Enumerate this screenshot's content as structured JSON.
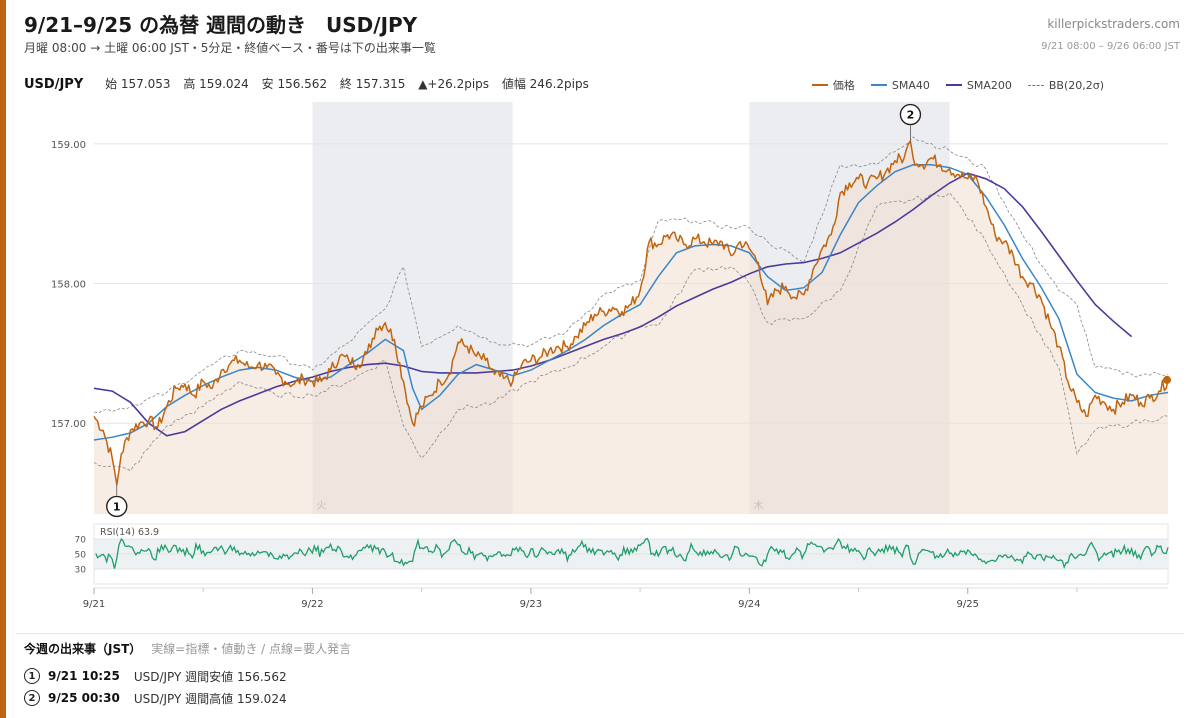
{
  "header": {
    "title": "9/21–9/25 の為替 週間の動き　USD/JPY",
    "subtitle": "月曜 08:00 → 土曜 06:00 JST・5分足・終値ベース・番号は下の出来事一覧",
    "site": "killerpickstraders.com",
    "range": "9/21 08:00 – 9/26 06:00 JST"
  },
  "stats": {
    "pair": "USD/JPY",
    "open": "始 157.053",
    "high": "高 159.024",
    "low": "安 156.562",
    "close": "終 157.315",
    "change": "▲+26.2pips",
    "range": "値幅 246.2pips"
  },
  "legend": [
    {
      "label": "価格",
      "color": "#c0650f"
    },
    {
      "label": "SMA40",
      "color": "#3a86c8"
    },
    {
      "label": "SMA200",
      "color": "#4b3a9a"
    },
    {
      "label": "BB(20,2σ)",
      "color": "#777777"
    }
  ],
  "colors": {
    "price": "#c0650f",
    "sma40": "#3a86c8",
    "sma200": "#4b3a9a",
    "bb": "#888888",
    "rsi": "#1f9e6b",
    "area": "#f3dfcf",
    "shade": "#ecedf0"
  },
  "chart_data": {
    "type": "line",
    "ylim": [
      156.35,
      159.3
    ],
    "y_ticks": [
      157.0,
      158.0,
      159.0
    ],
    "y_tick_labels": [
      "157.00",
      "158.00",
      "159.00"
    ],
    "xlim": [
      0,
      118
    ],
    "x_ticks": [
      0,
      24,
      48,
      72,
      96
    ],
    "x_tick_labels": [
      "9/21",
      "9/22",
      "9/23",
      "9/24",
      "9/25"
    ],
    "x_minor_ticks": [
      12,
      36,
      60,
      84,
      108
    ],
    "shaded_days": [
      {
        "from": 24,
        "to": 46,
        "label": "火"
      },
      {
        "from": 72,
        "to": 94,
        "label": "木"
      }
    ],
    "price": [
      [
        0,
        157.05
      ],
      [
        1,
        156.95
      ],
      [
        2,
        156.75
      ],
      [
        2.5,
        156.56
      ],
      [
        3,
        156.78
      ],
      [
        4,
        156.95
      ],
      [
        5,
        157.0
      ],
      [
        6,
        157.02
      ],
      [
        7,
        156.97
      ],
      [
        8,
        157.12
      ],
      [
        9,
        157.25
      ],
      [
        10,
        157.28
      ],
      [
        11,
        157.2
      ],
      [
        12,
        157.3
      ],
      [
        13,
        157.25
      ],
      [
        14,
        157.38
      ],
      [
        15,
        157.43
      ],
      [
        16,
        157.45
      ],
      [
        17,
        157.4
      ],
      [
        18,
        157.42
      ],
      [
        19,
        157.4
      ],
      [
        20,
        157.35
      ],
      [
        21,
        157.3
      ],
      [
        22,
        157.28
      ],
      [
        23,
        157.32
      ],
      [
        24,
        157.3
      ],
      [
        25,
        157.3
      ],
      [
        26,
        157.38
      ],
      [
        27,
        157.48
      ],
      [
        28,
        157.45
      ],
      [
        29,
        157.42
      ],
      [
        30,
        157.5
      ],
      [
        31,
        157.68
      ],
      [
        32,
        157.72
      ],
      [
        33,
        157.6
      ],
      [
        34,
        157.3
      ],
      [
        35,
        157.0
      ],
      [
        36,
        157.12
      ],
      [
        37,
        157.2
      ],
      [
        38,
        157.3
      ],
      [
        39,
        157.35
      ],
      [
        40,
        157.58
      ],
      [
        41,
        157.55
      ],
      [
        42,
        157.48
      ],
      [
        43,
        157.45
      ],
      [
        44,
        157.35
      ],
      [
        45,
        157.32
      ],
      [
        46,
        157.3
      ],
      [
        47,
        157.42
      ],
      [
        48,
        157.45
      ],
      [
        49,
        157.47
      ],
      [
        50,
        157.52
      ],
      [
        51,
        157.55
      ],
      [
        52,
        157.55
      ],
      [
        53,
        157.62
      ],
      [
        54,
        157.7
      ],
      [
        55,
        157.78
      ],
      [
        56,
        157.8
      ],
      [
        57,
        157.83
      ],
      [
        58,
        157.8
      ],
      [
        59,
        157.85
      ],
      [
        60,
        157.95
      ],
      [
        61,
        158.3
      ],
      [
        62,
        158.28
      ],
      [
        63,
        158.35
      ],
      [
        64,
        158.32
      ],
      [
        65,
        158.28
      ],
      [
        66,
        158.32
      ],
      [
        67,
        158.3
      ],
      [
        68,
        158.28
      ],
      [
        69,
        158.3
      ],
      [
        70,
        158.2
      ],
      [
        71,
        158.3
      ],
      [
        72,
        158.25
      ],
      [
        73,
        158.15
      ],
      [
        74,
        157.85
      ],
      [
        75,
        157.95
      ],
      [
        76,
        157.98
      ],
      [
        77,
        157.9
      ],
      [
        78,
        157.92
      ],
      [
        79,
        158.1
      ],
      [
        80,
        158.25
      ],
      [
        81,
        158.35
      ],
      [
        82,
        158.65
      ],
      [
        83,
        158.72
      ],
      [
        84,
        158.75
      ],
      [
        85,
        158.72
      ],
      [
        86,
        158.75
      ],
      [
        87,
        158.8
      ],
      [
        88,
        158.88
      ],
      [
        89,
        158.9
      ],
      [
        89.7,
        159.02
      ],
      [
        90,
        158.9
      ],
      [
        91,
        158.85
      ],
      [
        92,
        158.9
      ],
      [
        93,
        158.85
      ],
      [
        94,
        158.82
      ],
      [
        95,
        158.78
      ],
      [
        96,
        158.75
      ],
      [
        97,
        158.75
      ],
      [
        98,
        158.55
      ],
      [
        99,
        158.35
      ],
      [
        100,
        158.3
      ],
      [
        101,
        158.2
      ],
      [
        102,
        158.05
      ],
      [
        103,
        158.0
      ],
      [
        104,
        157.9
      ],
      [
        105,
        157.72
      ],
      [
        106,
        157.55
      ],
      [
        107,
        157.3
      ],
      [
        108,
        157.15
      ],
      [
        109,
        157.05
      ],
      [
        110,
        157.2
      ],
      [
        111,
        157.15
      ],
      [
        112,
        157.1
      ],
      [
        113,
        157.15
      ],
      [
        114,
        157.2
      ],
      [
        115,
        157.15
      ],
      [
        116,
        157.18
      ],
      [
        117,
        157.23
      ],
      [
        118,
        157.31
      ]
    ],
    "sma40": [
      [
        0,
        156.88
      ],
      [
        2,
        156.9
      ],
      [
        4,
        156.93
      ],
      [
        6,
        157.0
      ],
      [
        8,
        157.12
      ],
      [
        10,
        157.2
      ],
      [
        12,
        157.27
      ],
      [
        14,
        157.33
      ],
      [
        16,
        157.38
      ],
      [
        18,
        157.4
      ],
      [
        20,
        157.38
      ],
      [
        22,
        157.33
      ],
      [
        24,
        157.3
      ],
      [
        26,
        157.33
      ],
      [
        28,
        157.42
      ],
      [
        30,
        157.5
      ],
      [
        32,
        157.6
      ],
      [
        34,
        157.52
      ],
      [
        35,
        157.25
      ],
      [
        36,
        157.1
      ],
      [
        38,
        157.2
      ],
      [
        40,
        157.35
      ],
      [
        42,
        157.42
      ],
      [
        44,
        157.38
      ],
      [
        46,
        157.34
      ],
      [
        48,
        157.38
      ],
      [
        50,
        157.45
      ],
      [
        52,
        157.52
      ],
      [
        54,
        157.6
      ],
      [
        56,
        157.7
      ],
      [
        58,
        157.78
      ],
      [
        60,
        157.85
      ],
      [
        62,
        158.05
      ],
      [
        64,
        158.22
      ],
      [
        66,
        158.27
      ],
      [
        68,
        158.28
      ],
      [
        70,
        158.27
      ],
      [
        72,
        158.22
      ],
      [
        74,
        158.05
      ],
      [
        76,
        157.95
      ],
      [
        78,
        157.97
      ],
      [
        80,
        158.08
      ],
      [
        82,
        158.35
      ],
      [
        84,
        158.58
      ],
      [
        86,
        158.7
      ],
      [
        88,
        158.8
      ],
      [
        90,
        158.85
      ],
      [
        92,
        158.85
      ],
      [
        94,
        158.83
      ],
      [
        96,
        158.78
      ],
      [
        98,
        158.62
      ],
      [
        100,
        158.42
      ],
      [
        102,
        158.18
      ],
      [
        104,
        157.98
      ],
      [
        106,
        157.75
      ],
      [
        108,
        157.35
      ],
      [
        110,
        157.22
      ],
      [
        112,
        157.18
      ],
      [
        114,
        157.16
      ],
      [
        116,
        157.2
      ],
      [
        118,
        157.22
      ]
    ],
    "sma200": [
      [
        0,
        157.25
      ],
      [
        2,
        157.23
      ],
      [
        4,
        157.15
      ],
      [
        6,
        157.0
      ],
      [
        8,
        156.91
      ],
      [
        10,
        156.94
      ],
      [
        12,
        157.02
      ],
      [
        14,
        157.1
      ],
      [
        16,
        157.16
      ],
      [
        18,
        157.21
      ],
      [
        20,
        157.26
      ],
      [
        22,
        157.3
      ],
      [
        24,
        157.33
      ],
      [
        26,
        157.37
      ],
      [
        28,
        157.4
      ],
      [
        30,
        157.42
      ],
      [
        32,
        157.43
      ],
      [
        34,
        157.41
      ],
      [
        36,
        157.37
      ],
      [
        38,
        157.36
      ],
      [
        40,
        157.36
      ],
      [
        42,
        157.36
      ],
      [
        44,
        157.37
      ],
      [
        46,
        157.38
      ],
      [
        48,
        157.41
      ],
      [
        50,
        157.45
      ],
      [
        52,
        157.5
      ],
      [
        54,
        157.55
      ],
      [
        56,
        157.6
      ],
      [
        58,
        157.64
      ],
      [
        60,
        157.69
      ],
      [
        62,
        157.76
      ],
      [
        64,
        157.84
      ],
      [
        66,
        157.9
      ],
      [
        68,
        157.96
      ],
      [
        70,
        158.01
      ],
      [
        72,
        158.07
      ],
      [
        74,
        158.12
      ],
      [
        76,
        158.14
      ],
      [
        78,
        158.15
      ],
      [
        80,
        158.18
      ],
      [
        82,
        158.22
      ],
      [
        84,
        158.29
      ],
      [
        86,
        158.36
      ],
      [
        88,
        158.44
      ],
      [
        90,
        158.53
      ],
      [
        92,
        158.63
      ],
      [
        94,
        158.72
      ],
      [
        96,
        158.79
      ],
      [
        98,
        158.75
      ],
      [
        100,
        158.68
      ],
      [
        102,
        158.55
      ],
      [
        104,
        158.38
      ],
      [
        106,
        158.2
      ],
      [
        108,
        158.02
      ],
      [
        110,
        157.85
      ],
      [
        112,
        157.73
      ],
      [
        114,
        157.62
      ]
    ],
    "bb_upper": [
      [
        0,
        157.08
      ],
      [
        4,
        157.12
      ],
      [
        8,
        157.22
      ],
      [
        12,
        157.38
      ],
      [
        16,
        157.52
      ],
      [
        20,
        157.48
      ],
      [
        24,
        157.38
      ],
      [
        28,
        157.58
      ],
      [
        32,
        157.82
      ],
      [
        34,
        158.12
      ],
      [
        36,
        157.55
      ],
      [
        40,
        157.7
      ],
      [
        44,
        157.58
      ],
      [
        48,
        157.56
      ],
      [
        52,
        157.66
      ],
      [
        56,
        157.92
      ],
      [
        60,
        158.02
      ],
      [
        62,
        158.45
      ],
      [
        66,
        158.45
      ],
      [
        70,
        158.4
      ],
      [
        72,
        158.4
      ],
      [
        74,
        158.3
      ],
      [
        78,
        158.15
      ],
      [
        82,
        158.85
      ],
      [
        86,
        158.85
      ],
      [
        90,
        159.05
      ],
      [
        94,
        158.95
      ],
      [
        98,
        158.82
      ],
      [
        102,
        158.35
      ],
      [
        106,
        157.95
      ],
      [
        108,
        157.85
      ],
      [
        110,
        157.4
      ],
      [
        114,
        157.35
      ],
      [
        118,
        157.35
      ]
    ],
    "bb_lower": [
      [
        0,
        156.72
      ],
      [
        4,
        156.66
      ],
      [
        8,
        156.98
      ],
      [
        12,
        157.12
      ],
      [
        16,
        157.3
      ],
      [
        20,
        157.2
      ],
      [
        24,
        157.2
      ],
      [
        28,
        157.3
      ],
      [
        32,
        157.45
      ],
      [
        34,
        156.98
      ],
      [
        36,
        156.75
      ],
      [
        40,
        157.1
      ],
      [
        44,
        157.15
      ],
      [
        48,
        157.3
      ],
      [
        52,
        157.4
      ],
      [
        56,
        157.55
      ],
      [
        60,
        157.7
      ],
      [
        62,
        157.7
      ],
      [
        66,
        158.1
      ],
      [
        70,
        158.12
      ],
      [
        72,
        158.0
      ],
      [
        74,
        157.72
      ],
      [
        78,
        157.75
      ],
      [
        82,
        157.95
      ],
      [
        86,
        158.55
      ],
      [
        90,
        158.6
      ],
      [
        94,
        158.65
      ],
      [
        98,
        158.3
      ],
      [
        102,
        157.85
      ],
      [
        106,
        157.4
      ],
      [
        108,
        156.78
      ],
      [
        110,
        156.95
      ],
      [
        114,
        157.0
      ],
      [
        118,
        157.05
      ]
    ],
    "rsi": {
      "label": "RSI(14) 63.9",
      "ylim": [
        10,
        90
      ],
      "ticks": [
        30,
        50,
        70
      ],
      "tick_labels": [
        "30",
        "50",
        "70"
      ]
    },
    "annotations": [
      {
        "num": "1",
        "x": 2.5,
        "y": 156.562,
        "position": "below"
      },
      {
        "num": "2",
        "x": 89.7,
        "y": 159.024,
        "position": "above"
      }
    ]
  },
  "events": {
    "heading": "今週の出来事（JST）",
    "note": "実線=指標・値動き / 点線=要人発言",
    "items": [
      {
        "num": "1",
        "time": "9/21 10:25",
        "desc": "USD/JPY 週間安値 156.562"
      },
      {
        "num": "2",
        "time": "9/25 00:30",
        "desc": "USD/JPY 週間高値 159.024"
      }
    ]
  }
}
